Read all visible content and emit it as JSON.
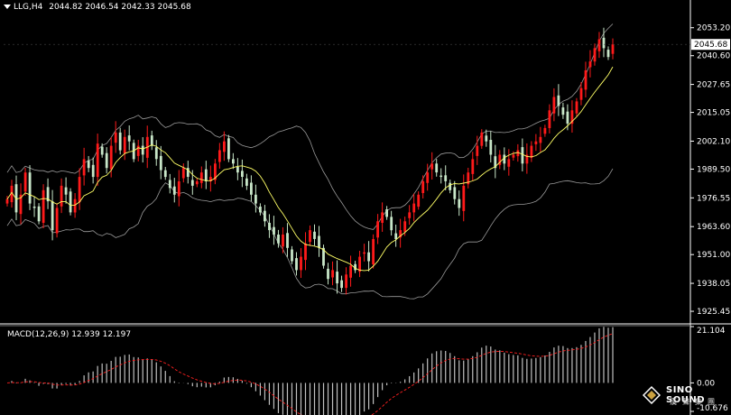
{
  "header": {
    "symbol": "LLG,H4",
    "ohlc": "2044.82 2046.54 2042.33 2045.68"
  },
  "macd": {
    "label": "MACD(12,26,9)",
    "values": "12.939 12.197"
  },
  "logo": {
    "name": "SINO SOUND",
    "subtitle": "漢聲集團"
  },
  "colors": {
    "background": "#000000",
    "bull": "#ff1a1a",
    "bear": "#c8e6c8",
    "ma": "#ffff66",
    "bands": "#9a9a9a",
    "macd_hist": "#c0c0c0",
    "signal": "#ff2020",
    "axis": "#ffffff",
    "price_tag_bg": "#ffffff",
    "price_tag_fg": "#000000"
  },
  "chart_data": [
    {
      "type": "candlestick",
      "title": "",
      "ylim": [
        1921,
        2060
      ],
      "yticks": [
        "2053.20",
        "2040.60",
        "2027.65",
        "2015.05",
        "2002.10",
        "1989.50",
        "1976.55",
        "1963.60",
        "1951.00",
        "1938.05",
        "1925.45"
      ],
      "current_price": "2045.68",
      "series": [
        {
          "kind": "price",
          "close": [
            1976,
            1982,
            1970,
            1978,
            1988,
            1974,
            1972,
            1966,
            1980,
            1975,
            1962,
            1972,
            1982,
            1978,
            1970,
            1976,
            1986,
            1994,
            1990,
            1986,
            2001,
            1996,
            1990,
            2000,
            2006,
            1998,
            2004,
            2002,
            1994,
            2000,
            1996,
            2004,
            2000,
            1994,
            1989,
            1986,
            1981,
            1978,
            1984,
            1990,
            1986,
            1982,
            1984,
            1988,
            1984,
            1986,
            1992,
            1998,
            2002,
            1994,
            1992,
            1988,
            1986,
            1982,
            1978,
            1974,
            1970,
            1966,
            1962,
            1960,
            1956,
            1960,
            1954,
            1948,
            1944,
            1950,
            1956,
            1962,
            1958,
            1954,
            1946,
            1940,
            1944,
            1938,
            1936,
            1942,
            1946,
            1944,
            1950,
            1952,
            1948,
            1958,
            1966,
            1970,
            1968,
            1962,
            1958,
            1962,
            1966,
            1970,
            1974,
            1978,
            1984,
            1988,
            1992,
            1988,
            1986,
            1984,
            1980,
            1976,
            1972,
            1982,
            1988,
            1994,
            2000,
            2006,
            2002,
            1996,
            1990,
            1996,
            1992,
            1994,
            1996,
            1998,
            1992,
            1996,
            2000,
            2002,
            2004,
            2008,
            2016,
            2022,
            2018,
            2014,
            2010,
            2016,
            2020,
            2026,
            2034,
            2038,
            2044,
            2048,
            2044,
            2040,
            2045.68
          ],
          "note": "4-hour candles, values estimated from chart"
        },
        {
          "kind": "moving_average",
          "name": "",
          "color": "#ffff66"
        },
        {
          "kind": "bollinger_bands",
          "name": "",
          "color": "#9a9a9a"
        }
      ]
    },
    {
      "type": "bar",
      "title": "MACD(12,26,9)",
      "ylim": [
        -10.676,
        21.104
      ],
      "yticks": [
        "21.104",
        "0.00",
        "-10.676"
      ],
      "series": [
        {
          "name": "MACD",
          "kind": "histogram"
        },
        {
          "name": "Signal",
          "kind": "line",
          "color": "#ff2020"
        }
      ]
    }
  ]
}
